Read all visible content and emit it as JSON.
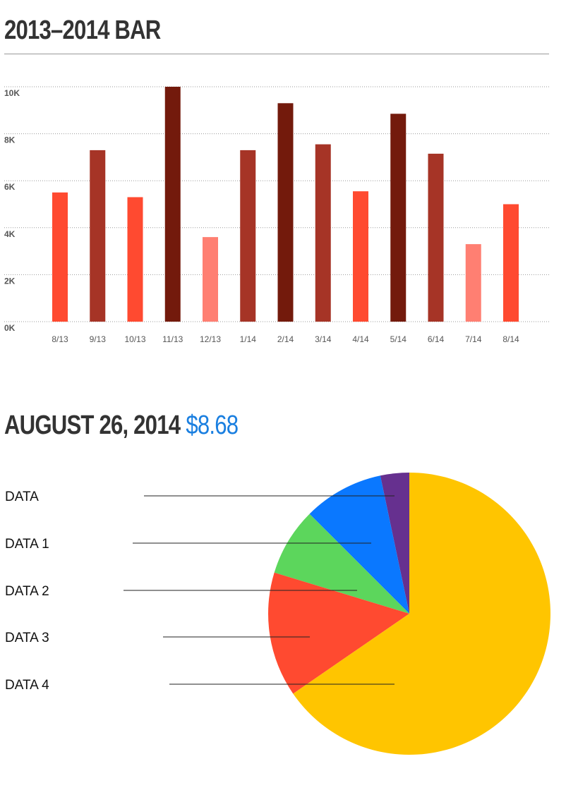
{
  "bar_section": {
    "title": "2013–2014 BAR"
  },
  "pie_section": {
    "title": "AUGUST 26, 2014",
    "price": "$8.68"
  },
  "chart_data": [
    {
      "type": "bar",
      "title": "2013–2014 BAR",
      "categories": [
        "8/13",
        "9/13",
        "10/13",
        "11/13",
        "12/13",
        "1/14",
        "2/14",
        "3/14",
        "4/14",
        "5/14",
        "6/14",
        "7/14",
        "8/14"
      ],
      "values": [
        5500,
        7300,
        5300,
        10000,
        3600,
        7300,
        9300,
        7550,
        5550,
        8850,
        7150,
        3300,
        5000
      ],
      "colors": [
        "#ff4a30",
        "#a63426",
        "#ff4a30",
        "#731a0c",
        "#ff7f72",
        "#a63426",
        "#731a0c",
        "#a63426",
        "#ff4a30",
        "#731a0c",
        "#a63426",
        "#ff7f72",
        "#ff4a30"
      ],
      "yticks": [
        "0K",
        "2K",
        "4K",
        "6K",
        "8K",
        "10K"
      ],
      "ytick_values": [
        0,
        2000,
        4000,
        6000,
        8000,
        10000
      ],
      "ylim": [
        0,
        10000
      ],
      "grid": true,
      "xlabel": "",
      "ylabel": ""
    },
    {
      "type": "pie",
      "title": "AUGUST 26, 2014",
      "labels": [
        "DATA",
        "DATA 1",
        "DATA 2",
        "DATA 3",
        "DATA 4"
      ],
      "values": [
        3.3,
        9.2,
        7.8,
        14.3,
        65.4
      ],
      "colors": [
        "#66308f",
        "#0a78ff",
        "#5cd65c",
        "#ff4a30",
        "#ffc500"
      ],
      "legend": "left"
    }
  ]
}
